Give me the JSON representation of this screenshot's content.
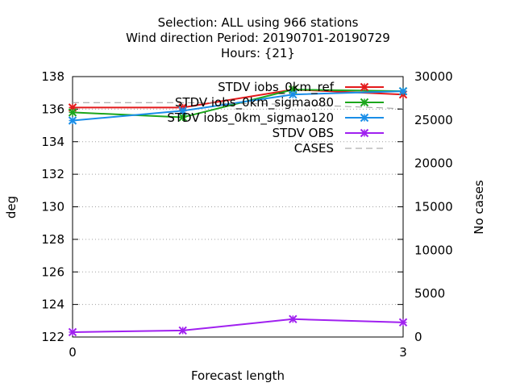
{
  "chart_data": {
    "type": "line",
    "title_lines": [
      "Selection: ALL using   966 stations",
      "Wind direction   Period: 20190701-20190729",
      "Hours: {21}"
    ],
    "xlabel": "Forecast length",
    "ylabel": "deg",
    "y2label": "No cases",
    "x": [
      0,
      1,
      2,
      3
    ],
    "xlim": [
      0,
      3
    ],
    "xticks": [
      "0",
      "3"
    ],
    "ylim": [
      122,
      138
    ],
    "yticks": [
      "122",
      "124",
      "126",
      "128",
      "130",
      "132",
      "134",
      "136",
      "138"
    ],
    "y2lim": [
      0,
      30000
    ],
    "y2ticks": [
      "0",
      "5000",
      "10000",
      "15000",
      "20000",
      "25000",
      "30000"
    ],
    "grid": true,
    "legend_position": "top-right",
    "series": [
      {
        "name": "STDV iobs_0km_ref",
        "color": "#e41a1c",
        "marker": "x",
        "axis": "y1",
        "values": [
          136.1,
          136.1,
          137.2,
          136.9
        ]
      },
      {
        "name": "STDV iobs_0km_sigmao80",
        "color": "#1ca61c",
        "marker": "x",
        "axis": "y1",
        "values": [
          135.8,
          135.5,
          137.2,
          137.1
        ]
      },
      {
        "name": "STDV iobs_0km_sigmao120",
        "color": "#1a8ee8",
        "marker": "x",
        "axis": "y1",
        "values": [
          135.3,
          135.9,
          136.9,
          137.1
        ]
      },
      {
        "name": "STDV OBS",
        "color": "#a020f0",
        "marker": "x",
        "axis": "y1",
        "values": [
          122.3,
          122.4,
          123.1,
          122.9
        ]
      },
      {
        "name": "CASES",
        "color": "#999999",
        "marker": "none",
        "dash": true,
        "axis": "y2",
        "values": [
          27000,
          27000,
          26800,
          26300
        ]
      }
    ]
  }
}
